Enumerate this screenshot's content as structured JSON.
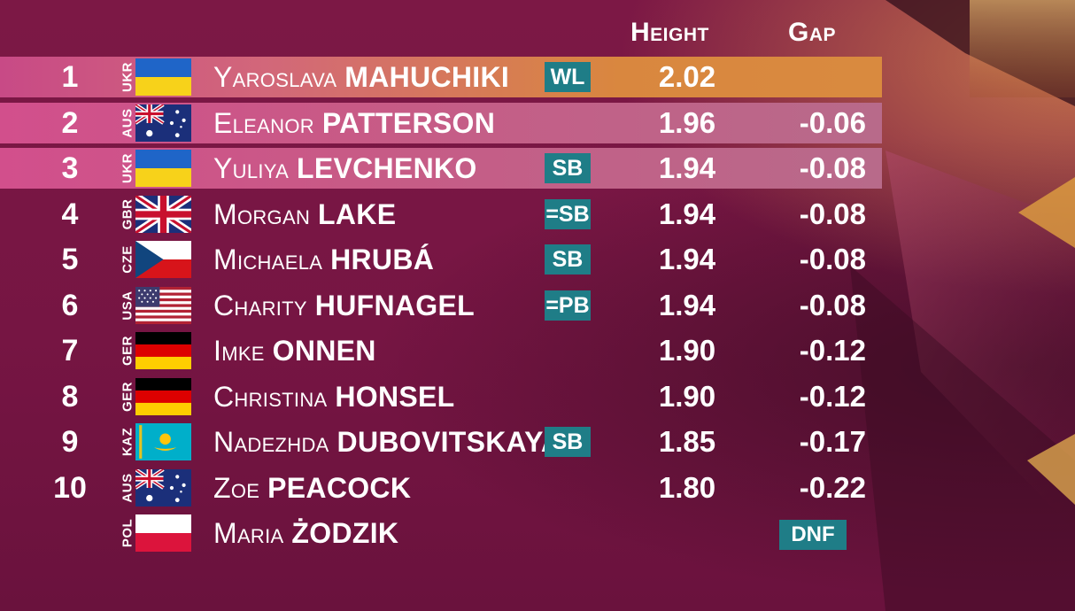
{
  "headers": {
    "height": "Height",
    "gap": "Gap"
  },
  "colors": {
    "background": "#7a1742",
    "leader_highlight": "#d98a3f",
    "podium_highlight": "#c85a86",
    "badge": "#1f7d87"
  },
  "rows": [
    {
      "rank": "1",
      "country": "UKR",
      "flag": "ukraine-flag-icon",
      "first": "Yaroslava",
      "last": "MAHUCHIKI",
      "badge": "WL",
      "height": "2.02",
      "gap": "",
      "highlight": "gold"
    },
    {
      "rank": "2",
      "country": "AUS",
      "flag": "australia-flag-icon",
      "first": "Eleanor",
      "last": "PATTERSON",
      "badge": "",
      "height": "1.96",
      "gap": "-0.06",
      "highlight": "pink"
    },
    {
      "rank": "3",
      "country": "UKR",
      "flag": "ukraine-flag-icon",
      "first": "Yuliya",
      "last": "LEVCHENKO",
      "badge": "SB",
      "height": "1.94",
      "gap": "-0.08",
      "highlight": "pink"
    },
    {
      "rank": "4",
      "country": "GBR",
      "flag": "uk-flag-icon",
      "first": "Morgan",
      "last": "LAKE",
      "badge": "=SB",
      "height": "1.94",
      "gap": "-0.08",
      "highlight": ""
    },
    {
      "rank": "5",
      "country": "CZE",
      "flag": "czech-flag-icon",
      "first": "Michaela",
      "last": "HRUBÁ",
      "badge": "SB",
      "height": "1.94",
      "gap": "-0.08",
      "highlight": ""
    },
    {
      "rank": "6",
      "country": "USA",
      "flag": "usa-flag-icon",
      "first": "Charity",
      "last": "HUFNAGEL",
      "badge": "=PB",
      "height": "1.94",
      "gap": "-0.08",
      "highlight": ""
    },
    {
      "rank": "7",
      "country": "GER",
      "flag": "germany-flag-icon",
      "first": "Imke",
      "last": "ONNEN",
      "badge": "",
      "height": "1.90",
      "gap": "-0.12",
      "highlight": ""
    },
    {
      "rank": "8",
      "country": "GER",
      "flag": "germany-flag-icon",
      "first": "Christina",
      "last": "HONSEL",
      "badge": "",
      "height": "1.90",
      "gap": "-0.12",
      "highlight": ""
    },
    {
      "rank": "9",
      "country": "KAZ",
      "flag": "kazakhstan-flag-icon",
      "first": "Nadezhda",
      "last": "DUBOVITSKAYA",
      "badge": "SB",
      "height": "1.85",
      "gap": "-0.17",
      "highlight": ""
    },
    {
      "rank": "10",
      "country": "AUS",
      "flag": "australia-flag-icon",
      "first": "Zoe",
      "last": "PEACOCK",
      "badge": "",
      "height": "1.80",
      "gap": "-0.22",
      "highlight": ""
    },
    {
      "rank": "",
      "country": "POL",
      "flag": "poland-flag-icon",
      "first": "Maria",
      "last": "ŻODZIK",
      "badge": "",
      "height": "",
      "gap": "",
      "status": "DNF",
      "highlight": ""
    }
  ]
}
